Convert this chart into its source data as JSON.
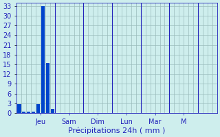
{
  "title": "",
  "xlabel": "Précipitations 24h ( mm )",
  "ylabel": "",
  "ylim": [
    0,
    34
  ],
  "yticks": [
    0,
    3,
    6,
    9,
    12,
    15,
    18,
    21,
    24,
    27,
    30,
    33
  ],
  "bar_color": "#0044cc",
  "background_color": "#ceeeed",
  "grid_color": "#99bbbb",
  "bar_values": [
    2.7,
    0.5,
    0.4,
    0.3,
    2.7,
    33.0,
    15.5,
    1.2,
    0,
    0,
    0,
    0,
    0,
    0,
    0,
    0,
    0,
    0,
    0,
    0,
    0,
    0,
    0,
    0,
    0,
    0,
    0,
    0,
    0,
    0,
    0,
    0,
    0,
    0,
    0,
    0,
    0,
    0,
    0,
    0,
    0,
    0
  ],
  "num_bars": 42,
  "day_tick_positions": [
    4.5,
    10.5,
    16.5,
    22.5,
    28.5,
    34.5
  ],
  "day_labels": [
    "Jeu",
    "Sam",
    "Dim",
    "Lun",
    "Mar",
    "M"
  ],
  "sep_positions": [
    7.5,
    13.5,
    19.5,
    25.5,
    31.5,
    37.5
  ],
  "xlabel_color": "#2222bb",
  "tick_color": "#2222bb",
  "label_fontsize": 8,
  "tick_fontsize": 7
}
